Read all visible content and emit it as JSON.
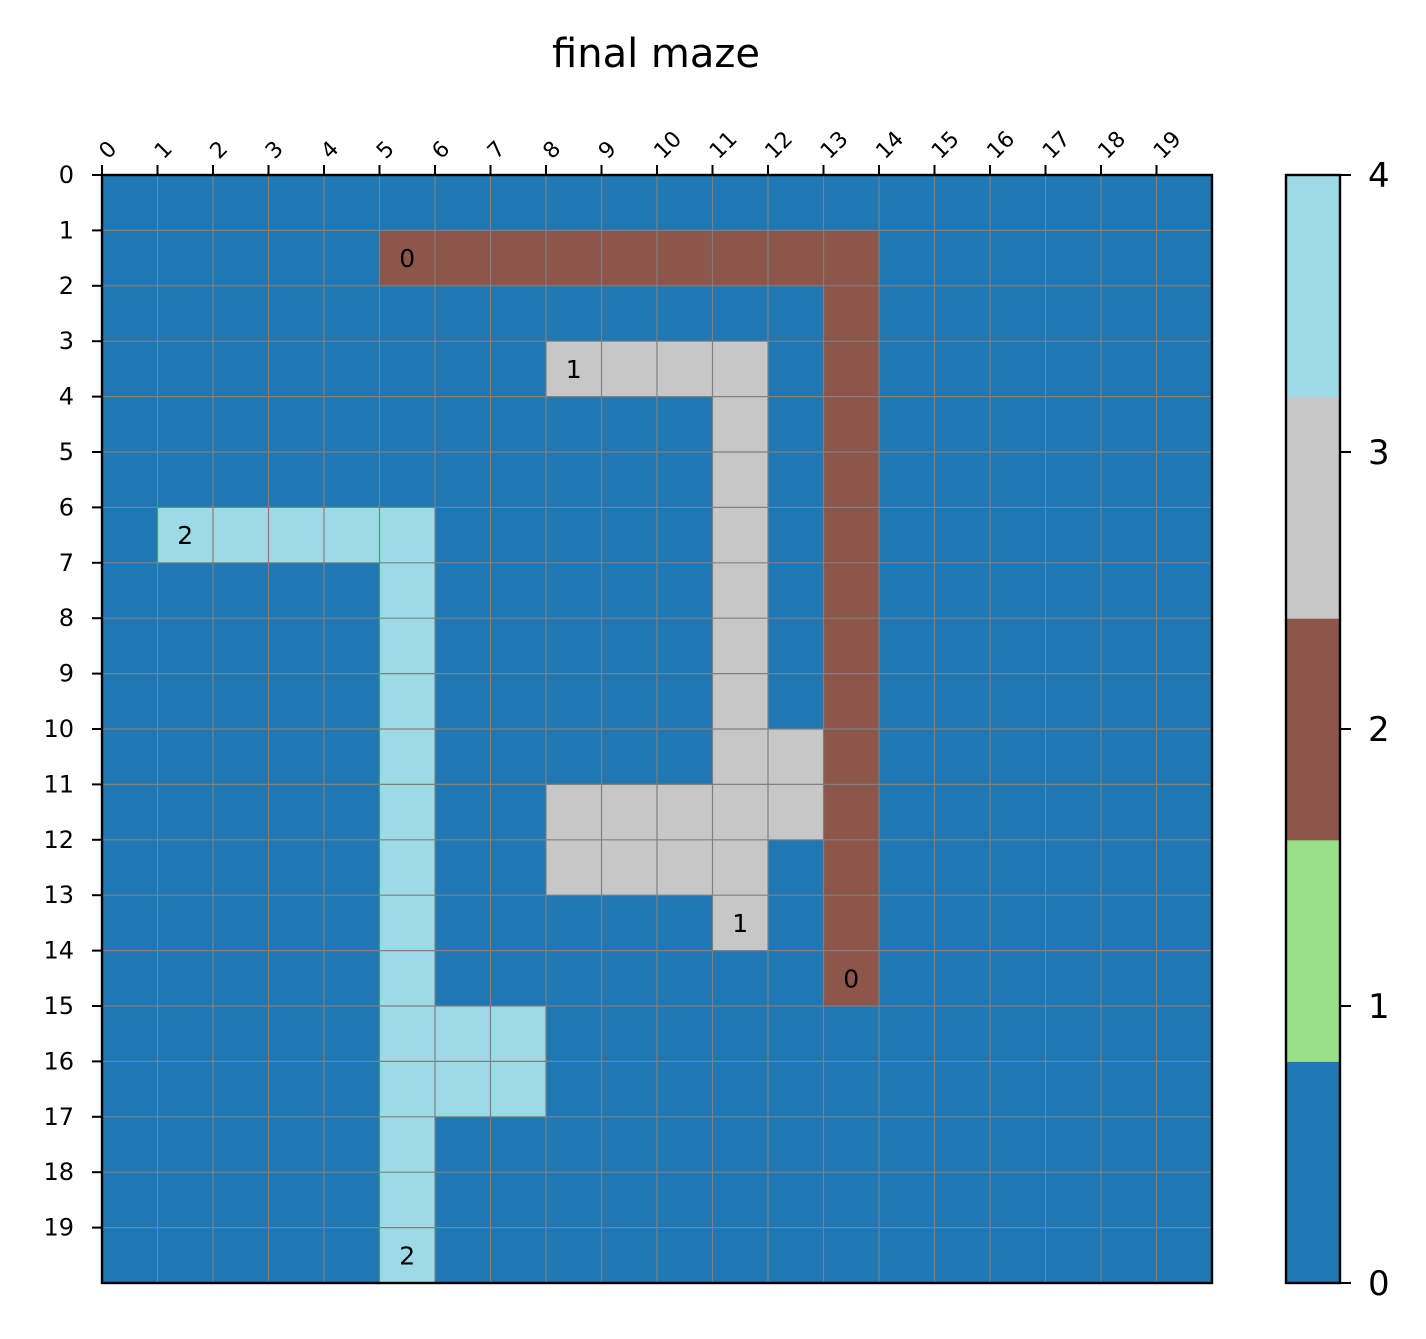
{
  "chart_data": {
    "type": "heatmap",
    "title": "final maze",
    "xlabel": "",
    "ylabel": "",
    "rows": 20,
    "cols": 20,
    "x_ticks": [
      "0",
      "1",
      "2",
      "3",
      "4",
      "5",
      "6",
      "7",
      "8",
      "9",
      "10",
      "11",
      "12",
      "13",
      "14",
      "15",
      "16",
      "17",
      "18",
      "19"
    ],
    "y_ticks": [
      "0",
      "1",
      "2",
      "3",
      "4",
      "5",
      "6",
      "7",
      "8",
      "9",
      "10",
      "11",
      "12",
      "13",
      "14",
      "15",
      "16",
      "17",
      "18",
      "19"
    ],
    "background_value": 0,
    "paths": [
      {
        "value": 2,
        "cells": [
          [
            1,
            5
          ],
          [
            1,
            6
          ],
          [
            1,
            7
          ],
          [
            1,
            8
          ],
          [
            1,
            9
          ],
          [
            1,
            10
          ],
          [
            1,
            11
          ],
          [
            1,
            12
          ],
          [
            1,
            13
          ],
          [
            2,
            13
          ],
          [
            3,
            13
          ],
          [
            4,
            13
          ],
          [
            5,
            13
          ],
          [
            6,
            13
          ],
          [
            7,
            13
          ],
          [
            8,
            13
          ],
          [
            9,
            13
          ],
          [
            10,
            13
          ],
          [
            11,
            13
          ],
          [
            12,
            13
          ],
          [
            13,
            13
          ],
          [
            14,
            13
          ]
        ]
      },
      {
        "value": 3,
        "cells": [
          [
            3,
            8
          ],
          [
            3,
            9
          ],
          [
            3,
            10
          ],
          [
            3,
            11
          ],
          [
            4,
            11
          ],
          [
            5,
            11
          ],
          [
            6,
            11
          ],
          [
            7,
            11
          ],
          [
            8,
            11
          ],
          [
            9,
            11
          ],
          [
            10,
            11
          ],
          [
            10,
            12
          ],
          [
            11,
            8
          ],
          [
            11,
            9
          ],
          [
            11,
            10
          ],
          [
            11,
            11
          ],
          [
            11,
            12
          ],
          [
            12,
            8
          ],
          [
            12,
            9
          ],
          [
            12,
            10
          ],
          [
            12,
            11
          ],
          [
            13,
            11
          ]
        ]
      },
      {
        "value": 4,
        "cells": [
          [
            6,
            1
          ],
          [
            6,
            2
          ],
          [
            6,
            3
          ],
          [
            6,
            4
          ],
          [
            6,
            5
          ],
          [
            7,
            5
          ],
          [
            8,
            5
          ],
          [
            9,
            5
          ],
          [
            10,
            5
          ],
          [
            11,
            5
          ],
          [
            12,
            5
          ],
          [
            13,
            5
          ],
          [
            14,
            5
          ],
          [
            15,
            5
          ],
          [
            15,
            6
          ],
          [
            15,
            7
          ],
          [
            16,
            5
          ],
          [
            16,
            6
          ],
          [
            16,
            7
          ],
          [
            17,
            5
          ],
          [
            18,
            5
          ],
          [
            19,
            5
          ]
        ]
      }
    ],
    "annotations": [
      {
        "row": 1,
        "col": 5,
        "text": "0"
      },
      {
        "row": 14,
        "col": 13,
        "text": "0"
      },
      {
        "row": 3,
        "col": 8,
        "text": "1"
      },
      {
        "row": 13,
        "col": 11,
        "text": "1"
      },
      {
        "row": 6,
        "col": 1,
        "text": "2"
      },
      {
        "row": 19,
        "col": 5,
        "text": "2"
      }
    ],
    "colorbar": {
      "min": 0,
      "max": 4,
      "ticks": [
        "0",
        "1",
        "2",
        "3",
        "4"
      ],
      "colors": {
        "0": "#1f77b4",
        "1": "#98df8a",
        "2": "#8c564b",
        "3": "#c7c7c7",
        "4": "#9edae5"
      }
    },
    "grid": true,
    "grid_color": "#808080"
  }
}
